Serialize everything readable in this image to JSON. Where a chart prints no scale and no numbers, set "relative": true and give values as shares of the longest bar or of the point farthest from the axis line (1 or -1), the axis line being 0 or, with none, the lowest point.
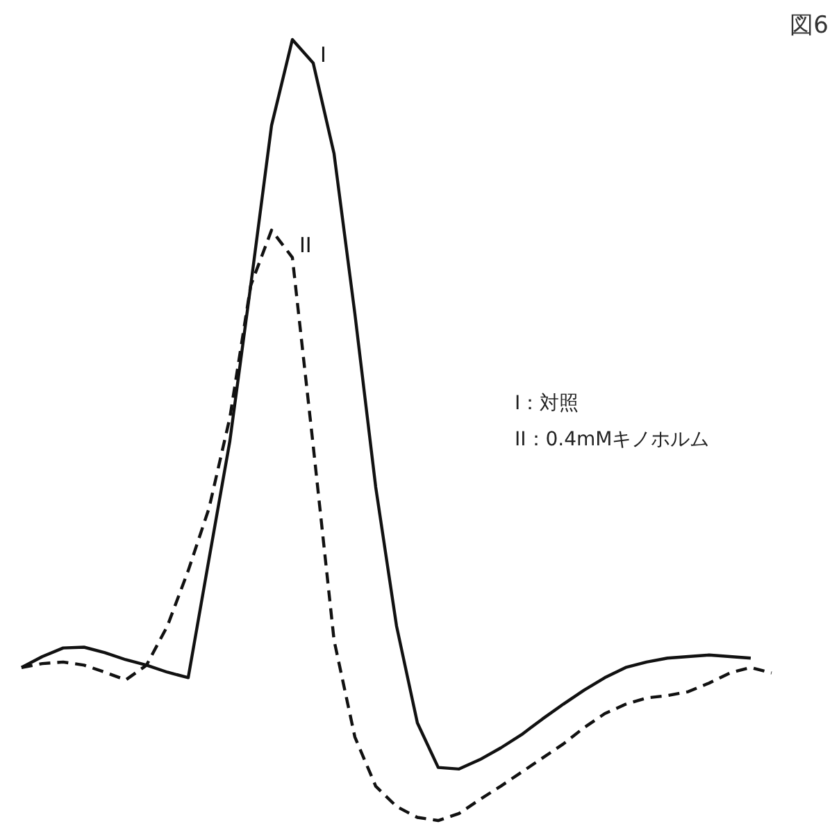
{
  "chart_data": {
    "type": "line",
    "title": "図6",
    "relative": true,
    "categories": [
      null,
      null,
      null,
      null,
      null,
      null,
      null,
      null,
      null,
      null,
      null,
      null,
      null,
      null,
      null,
      null,
      null,
      null,
      null,
      null,
      null,
      null,
      null,
      null,
      null,
      null,
      null,
      null,
      null,
      null,
      null,
      null,
      null,
      null,
      null,
      null,
      null
    ],
    "series": [
      {
        "name": "I",
        "color": "#111111",
        "line_style": "solid",
        "values": [
          0.196,
          0.21,
          0.221,
          0.222,
          0.215,
          0.206,
          0.199,
          0.19,
          0.183,
          0.335,
          0.486,
          0.685,
          0.89,
          1.0,
          0.97,
          0.854,
          0.649,
          0.427,
          0.249,
          0.125,
          0.068,
          0.066,
          0.078,
          0.093,
          0.11,
          0.13,
          0.149,
          0.167,
          0.183,
          0.196,
          0.203,
          0.208,
          0.21,
          0.212,
          0.21,
          0.208,
          null
        ]
      },
      {
        "name": "II",
        "color": "#111111",
        "line_style": "dashed",
        "values": [
          0.196,
          0.201,
          0.203,
          0.199,
          0.19,
          0.18,
          0.199,
          0.249,
          0.32,
          0.4,
          0.516,
          0.685,
          0.756,
          0.721,
          0.48,
          0.231,
          0.107,
          0.044,
          0.018,
          0.004,
          0.0,
          0.009,
          0.027,
          0.044,
          0.062,
          0.08,
          0.098,
          0.119,
          0.137,
          0.149,
          0.157,
          0.16,
          0.165,
          0.176,
          0.189,
          0.196,
          0.189
        ]
      }
    ],
    "annotations": [
      "I：対照",
      "II：0.4mMキノホルム"
    ],
    "grid": false
  }
}
